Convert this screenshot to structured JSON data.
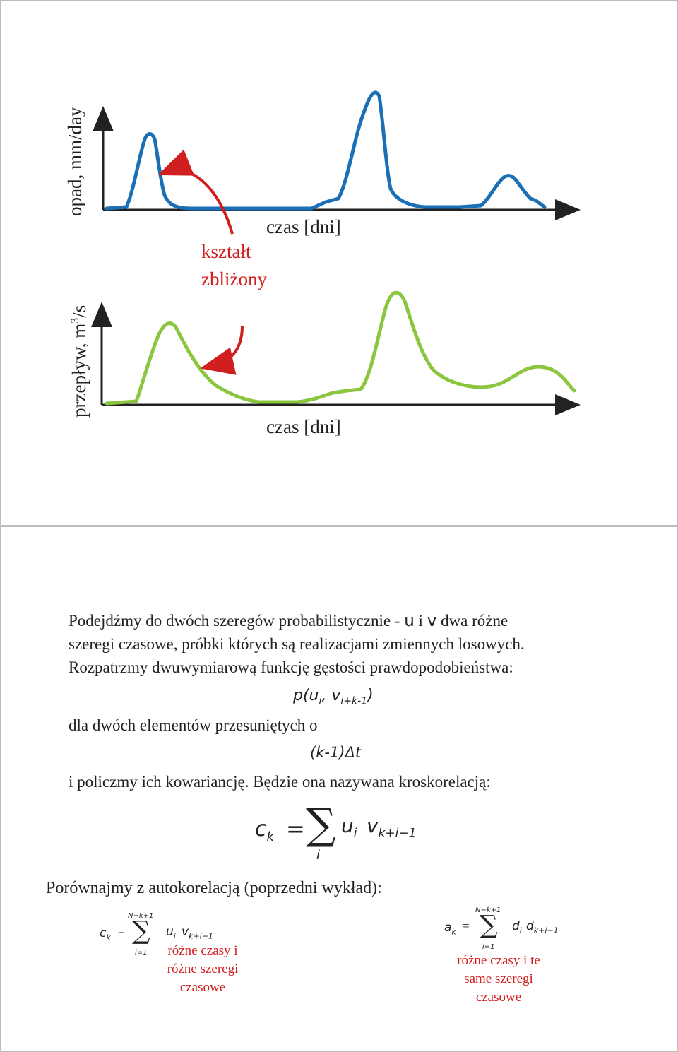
{
  "slide1": {
    "rain_axis_label": "opad, mm/day",
    "flow_axis_label_prefix": "przepływ, m",
    "flow_axis_label_sup": "3",
    "flow_axis_label_suffix": "/s",
    "time_label_top": "czas [dni]",
    "time_label_bottom": "czas [dni]",
    "annotation_line1": "kształt",
    "annotation_line2": "zbliżony",
    "colors": {
      "rain": "#1a6fb5",
      "flow": "#8cc63f",
      "arrow": "#d11f1f"
    }
  },
  "slide2": {
    "intro_p1": "Podejdźmy do dwóch szeregów probabilistycznie - ",
    "intro_u": "u",
    "intro_i": " i ",
    "intro_v": "v",
    "intro_p2": " dwa różne",
    "line2": "szeregi czasowe, próbki których są realizacjami zmiennych losowych.",
    "line3": "Rozpatrzmy dwuwymiarową funkcję gęstości prawdopodobieństwa:",
    "formula_p": "p(u",
    "formula_p_sub": "i",
    "formula_p_mid": ", v",
    "formula_p_sub2": "i+k-1",
    "formula_p_end": ")",
    "line4": "dla dwóch elementów przesuniętych o",
    "formula_shift": "(k-1)Δt",
    "line5": "i policzmy ich kowariancję. Będzie ona nazywana kroskorelacją:",
    "ck_big": {
      "lhs": "c",
      "lhs_sub": "k",
      "eq": "=",
      "sum": "∑",
      "sum_sub": "i",
      "u": "u",
      "u_sub": "i",
      "v": "v",
      "v_sub": "k+i−1"
    },
    "compare_line": "Porównajmy z autokorelacją (poprzedni wykład):",
    "ck_small": {
      "lhs": "c",
      "lhs_sub": "k",
      "eq": "=",
      "sum": "∑",
      "upper": "N−k+1",
      "lower": "i=1",
      "u": "u",
      "u_sub": "i",
      "v": "v",
      "v_sub": "k+i−1"
    },
    "ak_small": {
      "lhs": "a",
      "lhs_sub": "k",
      "eq": "=",
      "sum": "∑",
      "upper": "N−k+1",
      "lower": "i=1",
      "d1": "d",
      "d1_sub": "i",
      "d2": "d",
      "d2_sub": "k+i−1"
    },
    "caption_left": [
      "różne czasy i",
      "różne szeregi",
      "czasowe"
    ],
    "caption_right": [
      "różne czasy i te",
      "same szeregi",
      "czasowe"
    ]
  }
}
